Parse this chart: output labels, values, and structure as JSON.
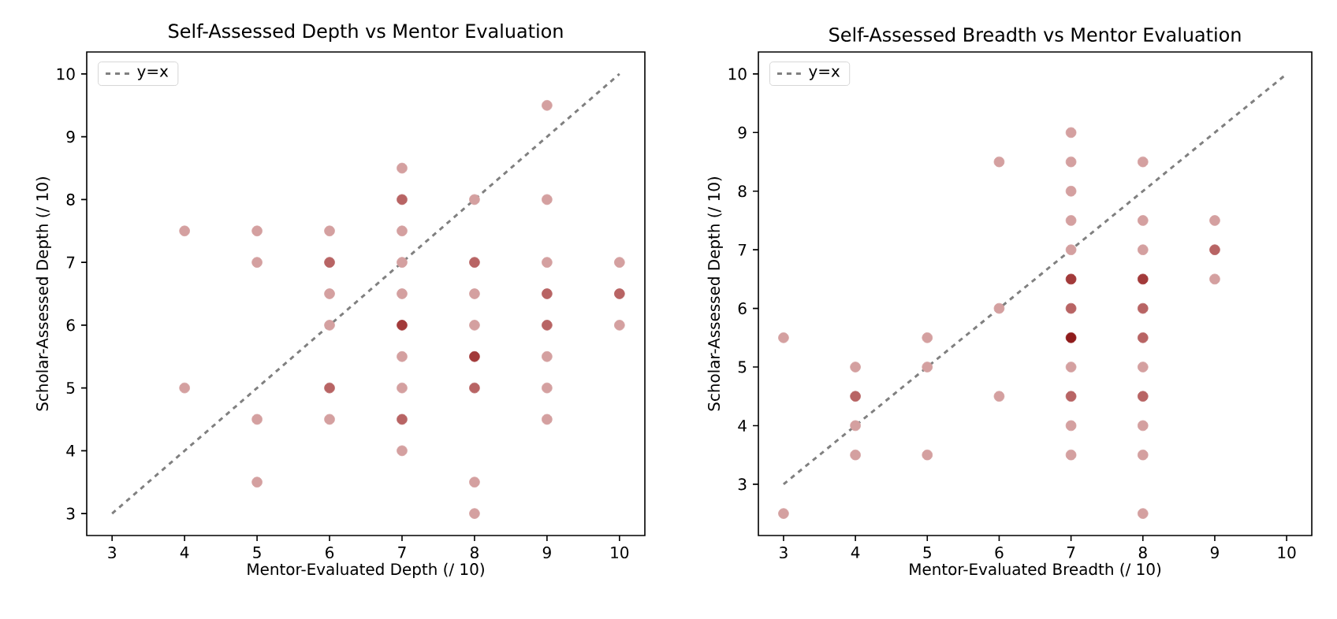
{
  "chart_data": [
    {
      "type": "scatter",
      "title": "Self-Assessed Depth vs Mentor Evaluation",
      "xlabel": "Mentor-Evaluated Depth (/ 10)",
      "ylabel": "Scholar-Assessed Depth (/ 10)",
      "xlim": [
        2.65,
        10.35
      ],
      "ylim": [
        2.65,
        10.35
      ],
      "xticks": [
        3,
        4,
        5,
        6,
        7,
        8,
        9,
        10
      ],
      "yticks": [
        3,
        4,
        5,
        6,
        7,
        8,
        9,
        10
      ],
      "grid": false,
      "legend": "top left",
      "marker": "circle",
      "series": [
        {
          "name": "y=x",
          "type": "line",
          "line_style": "dashed",
          "marker": "none",
          "color": "#808080",
          "x": [
            3,
            10
          ],
          "values": [
            3,
            10
          ]
        },
        {
          "color": "#d4a0a0",
          "x": [
            4,
            4,
            5,
            5,
            5,
            5,
            6,
            6,
            6,
            6,
            7,
            7,
            7,
            7,
            7,
            7,
            7,
            8,
            8,
            8,
            8,
            8,
            9,
            9,
            9,
            9,
            9,
            9,
            10,
            10
          ],
          "values": [
            7.5,
            5,
            7.5,
            7,
            4.5,
            3.5,
            7.5,
            6.5,
            6,
            4.5,
            8.5,
            7.5,
            7,
            6.5,
            5.5,
            5,
            4,
            8,
            6.5,
            6,
            3.5,
            3,
            9.5,
            8,
            7,
            5.5,
            5,
            4.5,
            7,
            6
          ]
        },
        {
          "color": "#b86464",
          "x": [
            6,
            6,
            7,
            7,
            8,
            8,
            9,
            9,
            10
          ],
          "values": [
            7,
            5,
            8,
            4.5,
            7,
            5,
            6.5,
            6,
            6.5
          ]
        },
        {
          "color": "#a23a3a",
          "x": [
            7,
            8
          ],
          "values": [
            6,
            5.5
          ]
        }
      ]
    },
    {
      "type": "scatter",
      "title": "Self-Assessed Breadth vs Mentor Evaluation",
      "xlabel": "Mentor-Evaluated Breadth (/ 10)",
      "ylabel": "Scholar-Assessed Depth (/ 10)",
      "xlim": [
        2.65,
        10.35
      ],
      "ylim": [
        2.125,
        10.375
      ],
      "xticks": [
        3,
        4,
        5,
        6,
        7,
        8,
        9,
        10
      ],
      "yticks": [
        3,
        4,
        5,
        6,
        7,
        8,
        9,
        10
      ],
      "grid": false,
      "legend": "top left",
      "marker": "circle",
      "series": [
        {
          "name": "y=x",
          "type": "line",
          "line_style": "dashed",
          "marker": "none",
          "color": "#808080",
          "x": [
            3,
            10
          ],
          "values": [
            3,
            10
          ]
        },
        {
          "color": "#d4a0a0",
          "x": [
            3,
            3,
            4,
            4,
            4,
            5,
            5,
            5,
            6,
            6,
            6,
            7,
            7,
            7,
            7,
            7,
            7,
            7,
            7,
            8,
            8,
            8,
            8,
            8,
            8,
            8,
            9,
            9
          ],
          "values": [
            5.5,
            2.5,
            5,
            4,
            3.5,
            5.5,
            5,
            3.5,
            8.5,
            6,
            4.5,
            9,
            8.5,
            8,
            7.5,
            7,
            5,
            4,
            3.5,
            8.5,
            7.5,
            7,
            5,
            4,
            3.5,
            2.5,
            7.5,
            6.5
          ]
        },
        {
          "color": "#b86464",
          "x": [
            4,
            7,
            7,
            8,
            8,
            8,
            9
          ],
          "values": [
            4.5,
            6,
            4.5,
            6,
            5.5,
            4.5,
            7
          ]
        },
        {
          "color": "#a23a3a",
          "x": [
            7,
            8
          ],
          "values": [
            6.5,
            6.5
          ]
        },
        {
          "color": "#8f1c1c",
          "x": [
            7
          ],
          "values": [
            5.5
          ]
        }
      ]
    }
  ]
}
